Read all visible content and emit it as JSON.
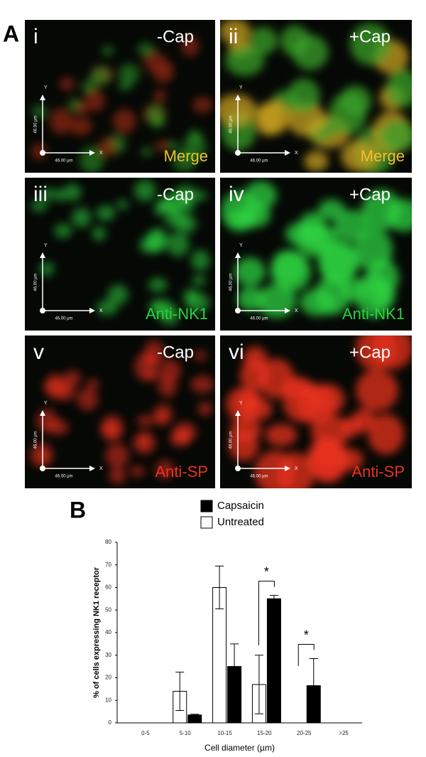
{
  "panel_a": {
    "label": "A",
    "panels": [
      {
        "numeral": "i",
        "condition": "-Cap",
        "stain": "Merge",
        "color": "#f0c030",
        "axis_y": "Y",
        "axis_x": "X",
        "scale_y": "46.00 µm",
        "scale_x": "46.00 µm"
      },
      {
        "numeral": "ii",
        "condition": "+Cap",
        "stain": "Merge",
        "color": "#f0c030",
        "axis_y": "Y",
        "axis_x": "X",
        "scale_y": "46.00 µm",
        "scale_x": "46.00 µm"
      },
      {
        "numeral": "iii",
        "condition": "-Cap",
        "stain": "Anti-NK1",
        "color": "#2ed040",
        "axis_y": "Y",
        "axis_x": "X",
        "scale_y": "46.00 µm",
        "scale_x": "46.00 µm"
      },
      {
        "numeral": "iv",
        "condition": "+Cap",
        "stain": "Anti-NK1",
        "color": "#2ed040",
        "axis_y": "Y",
        "axis_x": "X",
        "scale_y": "46.00 µm",
        "scale_x": "46.00 µm"
      },
      {
        "numeral": "v",
        "condition": "-Cap",
        "stain": "Anti-SP",
        "color": "#e8321e",
        "axis_y": "Y",
        "axis_x": "X",
        "scale_y": "46.00 µm",
        "scale_x": "46.00 µm"
      },
      {
        "numeral": "vi",
        "condition": "+Cap",
        "stain": "Anti-SP",
        "color": "#e8321e",
        "axis_y": "Y",
        "axis_x": "X",
        "scale_y": "46.00 µm",
        "scale_x": "46.00 µm"
      }
    ]
  },
  "chart_data": {
    "type": "bar",
    "panel_label": "B",
    "x_label": "Cell diameter (µm)",
    "y_label": "% of cells expressing NK1 receptor",
    "categories": [
      "0-5",
      "5-10",
      "10-15",
      "15-20",
      "20-25",
      ">25"
    ],
    "series": [
      {
        "name": "Capsaicin",
        "color": "#000000",
        "values": [
          0,
          3.5,
          25,
          55,
          16.5,
          0
        ],
        "errors": [
          0,
          0.3,
          10,
          1.5,
          12,
          0
        ]
      },
      {
        "name": "Untreated",
        "color": "#ffffff",
        "values": [
          0,
          14,
          60,
          17,
          0,
          0
        ],
        "errors": [
          0,
          8.5,
          9.5,
          13,
          0,
          0
        ]
      }
    ],
    "ylim": [
      0,
      80
    ],
    "yticks": [
      0,
      10,
      20,
      30,
      40,
      50,
      60,
      70,
      80
    ],
    "annotations": [
      "*",
      "*"
    ]
  }
}
